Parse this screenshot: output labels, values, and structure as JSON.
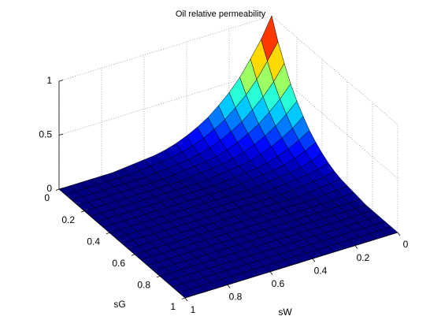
{
  "chart_data": {
    "type": "surface",
    "title": "Oil relative permeability",
    "xlabel": "sW",
    "ylabel": "sG",
    "x": [
      0,
      0.05,
      0.1,
      0.15,
      0.2,
      0.25,
      0.3,
      0.35,
      0.4,
      0.45,
      0.5,
      0.55,
      0.6,
      0.65,
      0.7,
      0.75,
      0.8,
      0.85,
      0.9,
      0.95,
      1
    ],
    "y": [
      0,
      0.05,
      0.1,
      0.15,
      0.2,
      0.25,
      0.3,
      0.35,
      0.4,
      0.45,
      0.5,
      0.55,
      0.6,
      0.65,
      0.7,
      0.75,
      0.8,
      0.85,
      0.9,
      0.95,
      1
    ],
    "z": [
      [
        1,
        0.81,
        0.66,
        0.52,
        0.41,
        0.32,
        0.24,
        0.18,
        0.13,
        0.09,
        0.06,
        0.04,
        0.03,
        0.02,
        0.01,
        0,
        0,
        0,
        0,
        0,
        0
      ],
      [
        0.81,
        0.66,
        0.52,
        0.41,
        0.32,
        0.24,
        0.18,
        0.13,
        0.09,
        0.06,
        0.04,
        0.03,
        0.02,
        0.01,
        0,
        0,
        0,
        0,
        0,
        0,
        0
      ],
      [
        0.66,
        0.52,
        0.41,
        0.32,
        0.24,
        0.18,
        0.13,
        0.09,
        0.06,
        0.04,
        0.03,
        0.02,
        0.01,
        0,
        0,
        0,
        0,
        0,
        0,
        0,
        0
      ],
      [
        0.52,
        0.41,
        0.32,
        0.24,
        0.18,
        0.13,
        0.09,
        0.06,
        0.04,
        0.03,
        0.02,
        0.01,
        0,
        0,
        0,
        0,
        0,
        0,
        0,
        0,
        0
      ],
      [
        0.41,
        0.32,
        0.24,
        0.18,
        0.13,
        0.09,
        0.06,
        0.04,
        0.03,
        0.02,
        0.01,
        0,
        0,
        0,
        0,
        0,
        0,
        0,
        0,
        0,
        0
      ],
      [
        0.32,
        0.24,
        0.18,
        0.13,
        0.09,
        0.06,
        0.04,
        0.03,
        0.02,
        0.01,
        0,
        0,
        0,
        0,
        0,
        0,
        0,
        0,
        0,
        0,
        0
      ],
      [
        0.24,
        0.18,
        0.13,
        0.09,
        0.06,
        0.04,
        0.03,
        0.02,
        0.01,
        0,
        0,
        0,
        0,
        0,
        0,
        0,
        0,
        0,
        0,
        0,
        0
      ],
      [
        0.18,
        0.13,
        0.09,
        0.06,
        0.04,
        0.03,
        0.02,
        0.01,
        0,
        0,
        0,
        0,
        0,
        0,
        0,
        0,
        0,
        0,
        0,
        0,
        0
      ],
      [
        0.13,
        0.09,
        0.06,
        0.04,
        0.03,
        0.02,
        0.01,
        0,
        0,
        0,
        0,
        0,
        0,
        0,
        0,
        0,
        0,
        0,
        0,
        0,
        0
      ],
      [
        0.09,
        0.06,
        0.04,
        0.03,
        0.02,
        0.01,
        0,
        0,
        0,
        0,
        0,
        0,
        0,
        0,
        0,
        0,
        0,
        0,
        0,
        0,
        0
      ],
      [
        0.06,
        0.04,
        0.03,
        0.02,
        0.01,
        0,
        0,
        0,
        0,
        0,
        0,
        0,
        0,
        0,
        0,
        0,
        0,
        0,
        0,
        0,
        0
      ],
      [
        0.04,
        0.03,
        0.02,
        0.01,
        0,
        0,
        0,
        0,
        0,
        0,
        0,
        0,
        0,
        0,
        0,
        0,
        0,
        0,
        0,
        0,
        0
      ],
      [
        0.03,
        0.02,
        0.01,
        0,
        0,
        0,
        0,
        0,
        0,
        0,
        0,
        0,
        0,
        0,
        0,
        0,
        0,
        0,
        0,
        0,
        0
      ],
      [
        0.02,
        0.01,
        0,
        0,
        0,
        0,
        0,
        0,
        0,
        0,
        0,
        0,
        0,
        0,
        0,
        0,
        0,
        0,
        0,
        0,
        0
      ],
      [
        0.01,
        0,
        0,
        0,
        0,
        0,
        0,
        0,
        0,
        0,
        0,
        0,
        0,
        0,
        0,
        0,
        0,
        0,
        0,
        0,
        0
      ],
      [
        0,
        0,
        0,
        0,
        0,
        0,
        0,
        0,
        0,
        0,
        0,
        0,
        0,
        0,
        0,
        0,
        0,
        0,
        0,
        0,
        0
      ],
      [
        0,
        0,
        0,
        0,
        0,
        0,
        0,
        0,
        0,
        0,
        0,
        0,
        0,
        0,
        0,
        0,
        0,
        0,
        0,
        0,
        0
      ],
      [
        0,
        0,
        0,
        0,
        0,
        0,
        0,
        0,
        0,
        0,
        0,
        0,
        0,
        0,
        0,
        0,
        0,
        0,
        0,
        0,
        0
      ],
      [
        0,
        0,
        0,
        0,
        0,
        0,
        0,
        0,
        0,
        0,
        0,
        0,
        0,
        0,
        0,
        0,
        0,
        0,
        0,
        0,
        0
      ],
      [
        0,
        0,
        0,
        0,
        0,
        0,
        0,
        0,
        0,
        0,
        0,
        0,
        0,
        0,
        0,
        0,
        0,
        0,
        0,
        0,
        0
      ],
      [
        0,
        0,
        0,
        0,
        0,
        0,
        0,
        0,
        0,
        0,
        0,
        0,
        0,
        0,
        0,
        0,
        0,
        0,
        0,
        0,
        0
      ]
    ],
    "xlim": [
      0,
      1
    ],
    "ylim": [
      0,
      1
    ],
    "zlim": [
      0,
      1
    ],
    "xticks": [
      0,
      0.2,
      0.4,
      0.6,
      0.8,
      1
    ],
    "yticks": [
      0,
      0.2,
      0.4,
      0.6,
      0.8,
      1
    ],
    "zticks": [
      0,
      0.5,
      1
    ],
    "colormap": "jet",
    "edge_color": "#000000",
    "grid": true
  }
}
